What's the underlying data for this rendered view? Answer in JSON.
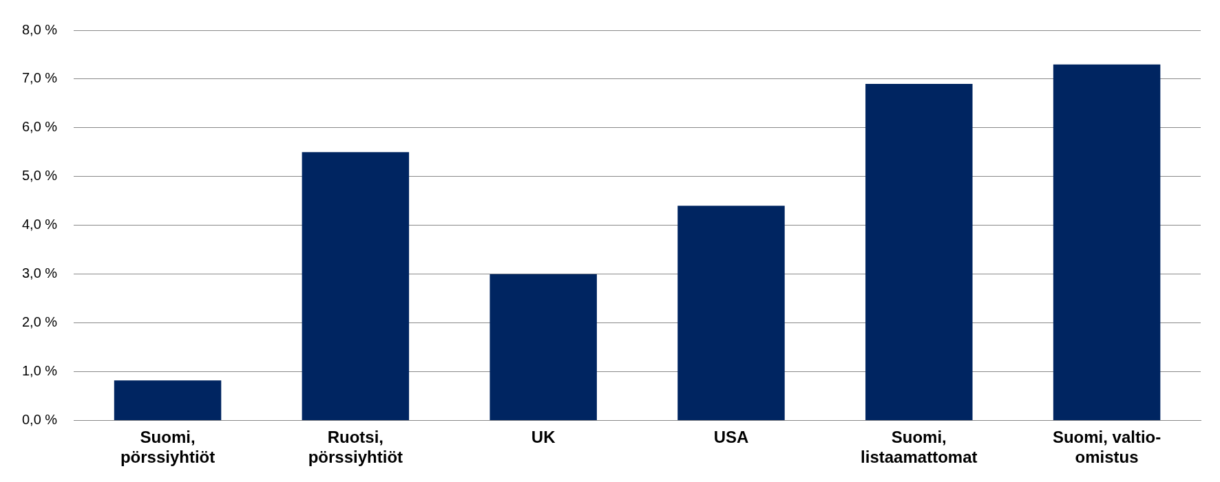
{
  "chart_data": {
    "type": "bar",
    "categories": [
      "Suomi, pörssiyhtiöt",
      "Ruotsi, pörssiyhtiöt",
      "UK",
      "USA",
      "Suomi, listaamattomat",
      "Suomi, valtio-omistus"
    ],
    "values": [
      0.82,
      5.5,
      3.0,
      4.4,
      6.9,
      7.3
    ],
    "color": "#002561",
    "ylim": [
      0,
      8
    ],
    "yticks": [
      {
        "value": 0,
        "label": "0,0 %"
      },
      {
        "value": 1,
        "label": "1,0 %"
      },
      {
        "value": 2,
        "label": "2,0 %"
      },
      {
        "value": 3,
        "label": "3,0 %"
      },
      {
        "value": 4,
        "label": "4,0 %"
      },
      {
        "value": 5,
        "label": "5,0 %"
      },
      {
        "value": 6,
        "label": "6,0 %"
      },
      {
        "value": 7,
        "label": "7,0 %"
      },
      {
        "value": 8,
        "label": "8,0 %"
      }
    ],
    "grid": "y"
  }
}
